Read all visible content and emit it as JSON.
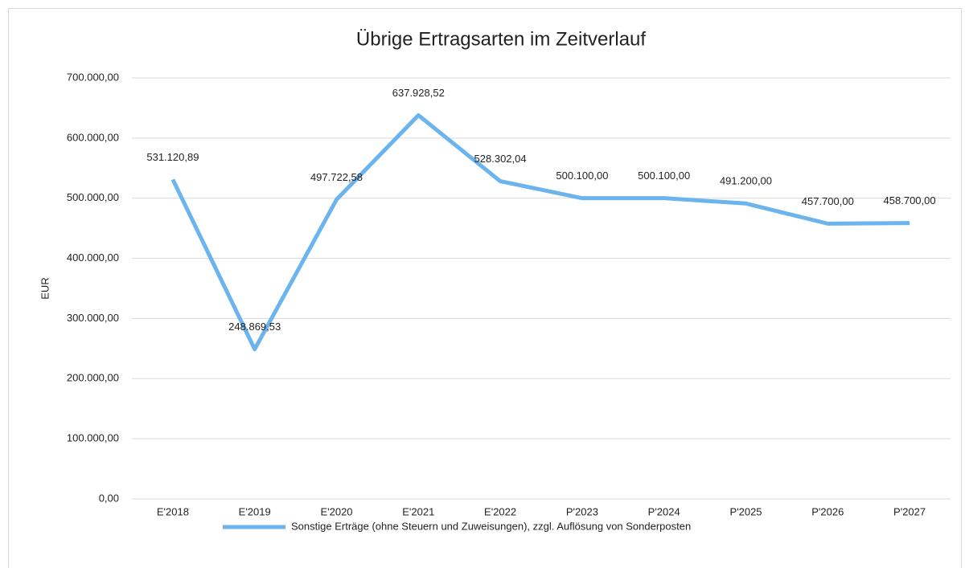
{
  "chart_data": {
    "type": "line",
    "title": "Übrige Ertragsarten im Zeitverlauf",
    "y_label": "EUR",
    "categories": [
      "E'2018",
      "E'2019",
      "E'2020",
      "E'2021",
      "E'2022",
      "P'2023",
      "P'2024",
      "P'2025",
      "P'2026",
      "P'2027"
    ],
    "series": [
      {
        "name": "Sonstige Erträge (ohne Steuern und Zuweisungen), zzgl. Auflösung von Sonderposten",
        "color": "#6cb4ee",
        "values": [
          531120.89,
          248869.53,
          497722.58,
          637928.52,
          528302.04,
          500100,
          500100,
          491200,
          457700,
          458700
        ],
        "value_labels": [
          "531.120,89",
          "248.869,53",
          "497.722,58",
          "637.928,52",
          "528.302,04",
          "500.100,00",
          "500.100,00",
          "491.200,00",
          "457.700,00",
          "458.700,00"
        ]
      }
    ],
    "ylim": [
      0,
      700000
    ],
    "yticks": [
      {
        "value": 0,
        "label": "0,00"
      },
      {
        "value": 100000,
        "label": "100.000,00"
      },
      {
        "value": 200000,
        "label": "200.000,00"
      },
      {
        "value": 300000,
        "label": "300.000,00"
      },
      {
        "value": 400000,
        "label": "400.000,00"
      },
      {
        "value": 500000,
        "label": "500.000,00"
      },
      {
        "value": 600000,
        "label": "600.000,00"
      },
      {
        "value": 700000,
        "label": "700.000,00"
      }
    ],
    "grid": true,
    "legend": "bottom"
  }
}
